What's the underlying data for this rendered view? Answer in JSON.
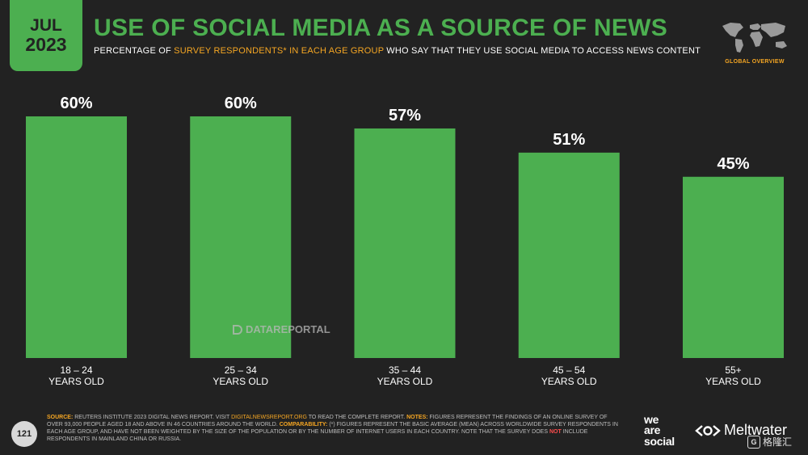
{
  "header": {
    "month": "JUL",
    "year": "2023",
    "title": "USE OF SOCIAL MEDIA AS A SOURCE OF NEWS",
    "subtitle_pre": "PERCENTAGE OF ",
    "subtitle_highlight": "SURVEY RESPONDENTS* IN EACH AGE GROUP",
    "subtitle_post": " WHO SAY THAT THEY USE SOCIAL MEDIA TO ACCESS NEWS CONTENT",
    "overview_label": "GLOBAL OVERVIEW"
  },
  "chart_data": {
    "type": "bar",
    "title": "USE OF SOCIAL MEDIA AS A SOURCE OF NEWS",
    "categories": [
      "18 – 24",
      "25 – 34",
      "35 – 44",
      "45 – 54",
      "55+"
    ],
    "category_sublabel": "YEARS OLD",
    "values": [
      60,
      60,
      57,
      51,
      45
    ],
    "value_labels": [
      "60%",
      "60%",
      "57%",
      "51%",
      "45%"
    ],
    "unit": "%",
    "ylim": [
      0,
      60
    ],
    "xlabel": "",
    "ylabel": "",
    "grid": false,
    "bar_color": "#4caf50"
  },
  "watermark": "DATAREPORTAL",
  "footer": {
    "page_number": "121",
    "source_label": "SOURCE:",
    "source_text": " REUTERS INSTITUTE 2023 DIGITAL NEWS REPORT. VISIT ",
    "source_link": "DIGITALNEWSREPORT.ORG",
    "source_tail": " TO READ THE COMPLETE REPORT. ",
    "notes_label": "NOTES:",
    "notes_text": " FIGURES REPRESENT THE FINDINGS OF AN ONLINE SURVEY OF OVER 93,000 PEOPLE AGED 18 AND ABOVE IN 46 COUNTRIES AROUND THE WORLD. ",
    "comparability_label": "COMPARABILITY:",
    "comparability_text": " (*) FIGURES REPRESENT THE BASIC AVERAGE (MEAN) ACROSS WORLDWIDE SURVEY RESPONDENTS IN EACH AGE GROUP, AND HAVE NOT BEEN WEIGHTED BY THE SIZE OF THE POPULATION OR BY THE NUMBER OF INTERNET USERS IN EACH COUNTRY. NOTE THAT THE SURVEY DOES ",
    "not_word": "NOT",
    "comparability_tail": " INCLUDE RESPONDENTS IN MAINLAND CHINA OR RUSSIA."
  },
  "logos": {
    "was_line1": "we",
    "was_line2": "are",
    "was_line3": "social",
    "meltwater": "Meltwater",
    "gelonghui_mark": "G",
    "gelonghui": "格隆汇"
  }
}
